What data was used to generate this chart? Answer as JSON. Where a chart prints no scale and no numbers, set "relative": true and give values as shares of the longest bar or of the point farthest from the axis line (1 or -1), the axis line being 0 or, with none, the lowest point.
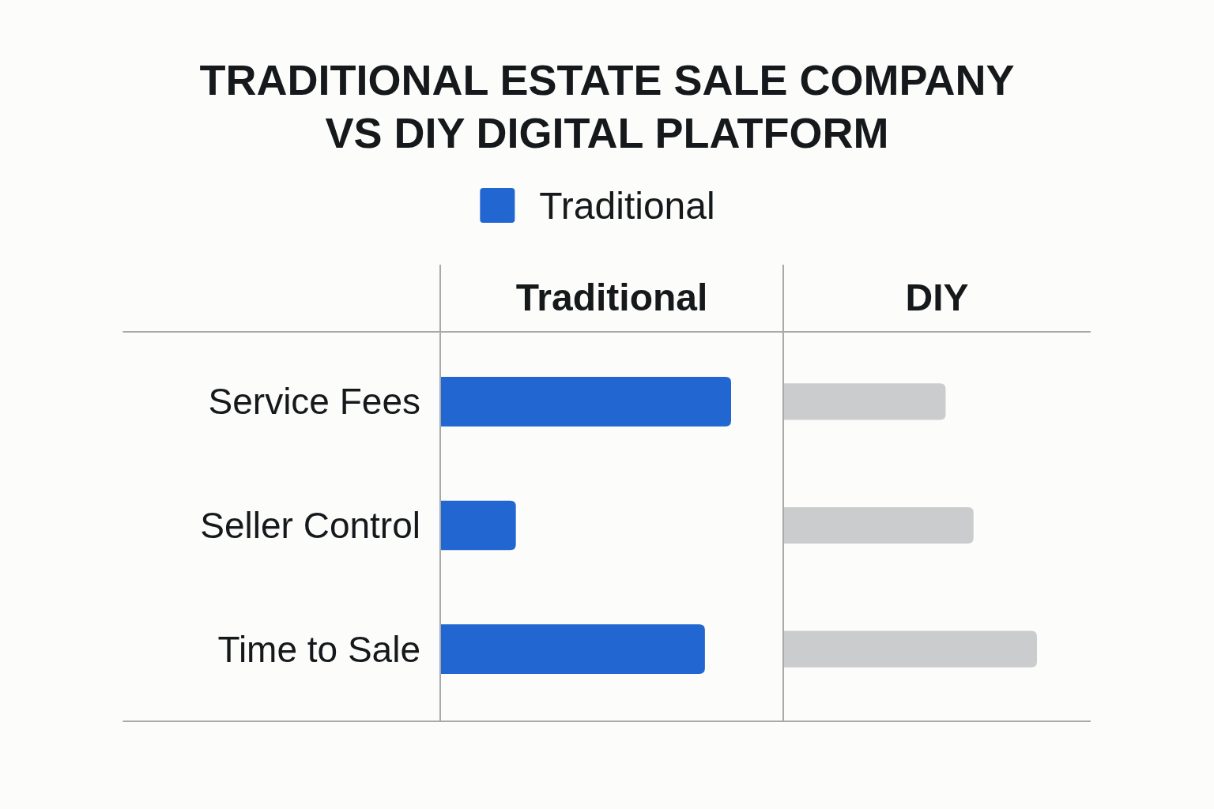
{
  "chart_data": [
    {
      "type": "bar",
      "orientation": "horizontal",
      "relative": true,
      "title": "TRADITIONAL ESTATE SALE COMPANY VS DIY DIGITAL PLATFORM",
      "subtitle": "Traditional",
      "categories": [
        "Service Fees",
        "Seller Control",
        "Time to Sale"
      ],
      "series": [
        {
          "name": "Traditional",
          "color": "#2166d1",
          "values": [
            1,
            0.26,
            0.91
          ]
        }
      ],
      "legend": "top"
    },
    {
      "type": "bar",
      "orientation": "horizontal",
      "relative": true,
      "subtitle": "DIY",
      "categories": [
        "Service Fees",
        "Seller Control",
        "Time to Sale"
      ],
      "series": [
        {
          "color": "#cbccce",
          "values": [
            0.64,
            0.75,
            1
          ]
        }
      ],
      "tick_labels": false
    }
  ]
}
